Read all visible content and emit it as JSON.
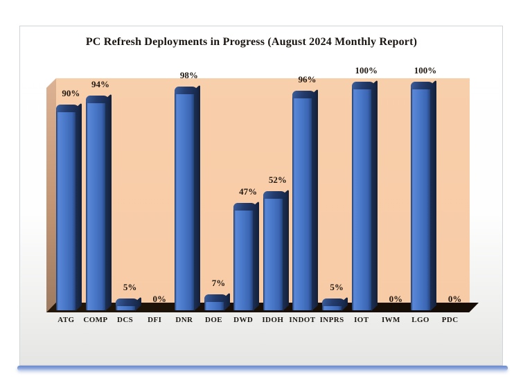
{
  "slide": {
    "title": "PC Refresh Deployments in Progress (August 2024 Monthly Report)"
  },
  "chart_data": {
    "type": "bar",
    "projection": "3d-column",
    "title": "PC Refresh Deployments in Progress (August 2024 Monthly Report)",
    "categories": [
      "ATG",
      "COMP",
      "DCS",
      "DFI",
      "DNR",
      "DOE",
      "DWD",
      "IDOH",
      "INDOT",
      "INPRS",
      "IOT",
      "IWM",
      "LGO",
      "PDC"
    ],
    "values": [
      90,
      94,
      5,
      0,
      98,
      7,
      47,
      52,
      96,
      5,
      100,
      0,
      100,
      0
    ],
    "value_labels": [
      "90%",
      "94%",
      "5%",
      "0%",
      "98%",
      "7%",
      "47%",
      "52%",
      "96%",
      "5%",
      "100%",
      "0%",
      "100%",
      "0%"
    ],
    "unit": "%",
    "ylim": [
      0,
      100
    ],
    "xlabel": "",
    "ylabel": "",
    "legend": "none",
    "gridlines": false,
    "data_labels": "above-bars",
    "colors": {
      "bar_face": "#4472C4",
      "bar_edge": "#17233F",
      "back_wall": "#F7CBA6",
      "side_wall": "#C29674",
      "floor": "#1A1008",
      "label_text": "#211811",
      "accent_strip": "#5F82C8"
    }
  }
}
